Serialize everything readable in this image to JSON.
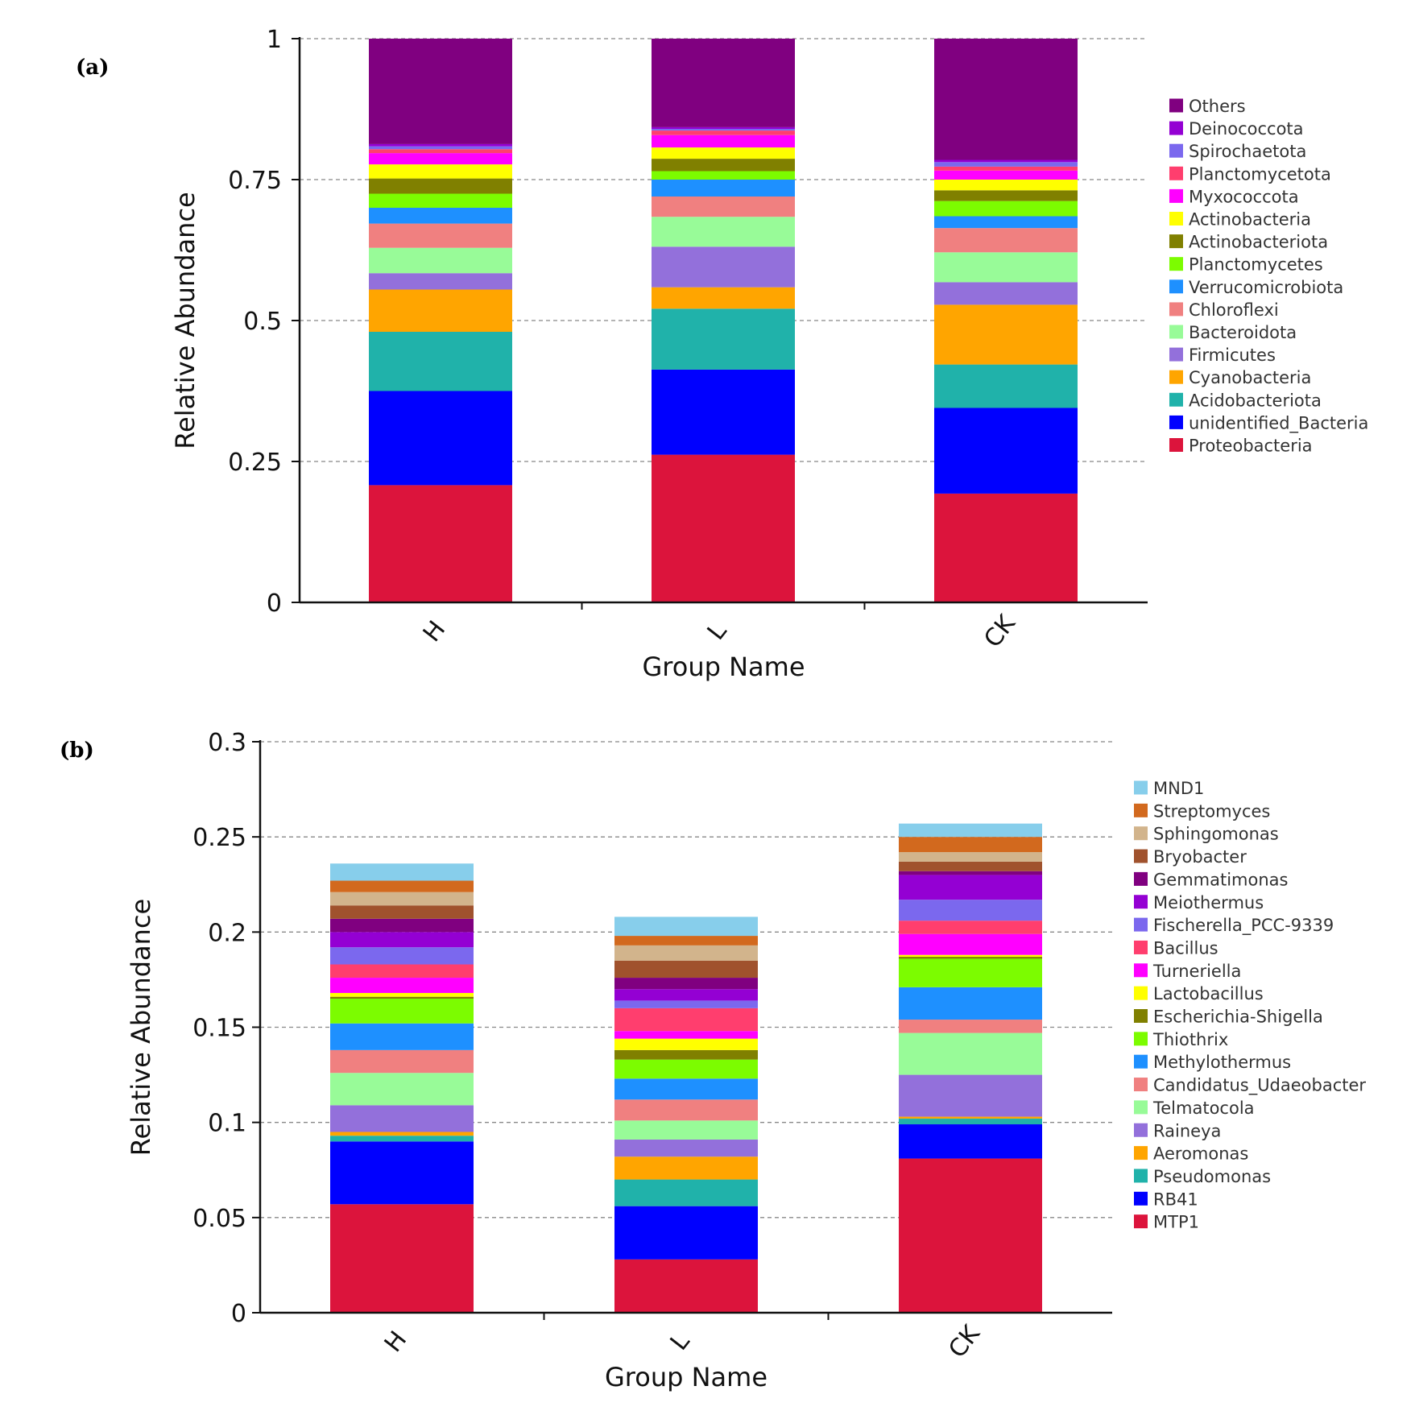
{
  "chart_data": [
    {
      "panel": "(a)",
      "type": "bar",
      "stacked": true,
      "categories": [
        "H",
        "L",
        "CK"
      ],
      "xlabel": "Group Name",
      "ylabel": "Relative Abundance",
      "ylim": [
        0,
        1
      ],
      "yticks": [
        0,
        0.25,
        0.5,
        0.75,
        1
      ],
      "ytick_labels": [
        "0",
        "0.25",
        "0.5",
        "0.75",
        "1"
      ],
      "grid": "dashed horizontal",
      "legend_position": "right",
      "series": [
        {
          "name": "Proteobacteria",
          "color": "#dc143c",
          "values": [
            0.208,
            0.262,
            0.193
          ]
        },
        {
          "name": "unidentified_Bacteria",
          "color": "#0000ff",
          "values": [
            0.167,
            0.151,
            0.152
          ]
        },
        {
          "name": "Acidobacteriota",
          "color": "#20b2aa",
          "values": [
            0.105,
            0.108,
            0.077
          ]
        },
        {
          "name": "Cyanobacteria",
          "color": "#ffa500",
          "values": [
            0.075,
            0.038,
            0.106
          ]
        },
        {
          "name": "Firmicutes",
          "color": "#9370db",
          "values": [
            0.029,
            0.072,
            0.04
          ]
        },
        {
          "name": "Bacteroidota",
          "color": "#98fb98",
          "values": [
            0.045,
            0.053,
            0.053
          ]
        },
        {
          "name": "Chloroflexi",
          "color": "#f08080",
          "values": [
            0.043,
            0.036,
            0.043
          ]
        },
        {
          "name": "Verrucomicrobiota",
          "color": "#1e90ff",
          "values": [
            0.028,
            0.03,
            0.021
          ]
        },
        {
          "name": "Planctomycetes",
          "color": "#7cfc00",
          "values": [
            0.025,
            0.015,
            0.027
          ]
        },
        {
          "name": "Actinobacteriota",
          "color": "#808000",
          "values": [
            0.027,
            0.022,
            0.019
          ]
        },
        {
          "name": "Actinobacteria",
          "color": "#ffff00",
          "values": [
            0.025,
            0.02,
            0.019
          ]
        },
        {
          "name": "Myxococcota",
          "color": "#ff00ff",
          "values": [
            0.02,
            0.022,
            0.016
          ]
        },
        {
          "name": "Planctomycetota",
          "color": "#ff3e6e",
          "values": [
            0.007,
            0.008,
            0.007
          ]
        },
        {
          "name": "Spirochaetota",
          "color": "#7b68ee",
          "values": [
            0.005,
            0.003,
            0.008
          ]
        },
        {
          "name": "Deinococcota",
          "color": "#9400d3",
          "values": [
            0.004,
            0.003,
            0.004
          ]
        },
        {
          "name": "Others",
          "color": "#800080",
          "values": [
            0.187,
            0.157,
            0.215
          ]
        }
      ]
    },
    {
      "panel": "(b)",
      "type": "bar",
      "stacked": true,
      "categories": [
        "H",
        "L",
        "CK"
      ],
      "xlabel": "Group Name",
      "ylabel": "Relative Abundance",
      "ylim": [
        0,
        0.3
      ],
      "yticks": [
        0,
        0.05,
        0.1,
        0.15,
        0.2,
        0.25,
        0.3
      ],
      "ytick_labels": [
        "0",
        "0.05",
        "0.1",
        "0.15",
        "0.2",
        "0.25",
        "0.3"
      ],
      "grid": "dashed horizontal",
      "legend_position": "right",
      "series": [
        {
          "name": "MTP1",
          "color": "#dc143c",
          "values": [
            0.057,
            0.028,
            0.081
          ]
        },
        {
          "name": "RB41",
          "color": "#0000ff",
          "values": [
            0.033,
            0.028,
            0.018
          ]
        },
        {
          "name": "Pseudomonas",
          "color": "#20b2aa",
          "values": [
            0.003,
            0.014,
            0.003
          ]
        },
        {
          "name": "Aeromonas",
          "color": "#ffa500",
          "values": [
            0.002,
            0.012,
            0.001
          ]
        },
        {
          "name": "Raineya",
          "color": "#9370db",
          "values": [
            0.014,
            0.009,
            0.022
          ]
        },
        {
          "name": "Telmatocola",
          "color": "#98fb98",
          "values": [
            0.017,
            0.01,
            0.022
          ]
        },
        {
          "name": "Candidatus_Udaeobacter",
          "color": "#f08080",
          "values": [
            0.012,
            0.011,
            0.007
          ]
        },
        {
          "name": "Methylothermus",
          "color": "#1e90ff",
          "values": [
            0.014,
            0.011,
            0.017
          ]
        },
        {
          "name": "Thiothrix",
          "color": "#7cfc00",
          "values": [
            0.013,
            0.01,
            0.015
          ]
        },
        {
          "name": "Escherichia-Shigella",
          "color": "#808000",
          "values": [
            0.001,
            0.005,
            0.001
          ]
        },
        {
          "name": "Lactobacillus",
          "color": "#ffff00",
          "values": [
            0.002,
            0.006,
            0.001
          ]
        },
        {
          "name": "Turneriella",
          "color": "#ff00ff",
          "values": [
            0.008,
            0.004,
            0.011
          ]
        },
        {
          "name": "Bacillus",
          "color": "#ff3e6e",
          "values": [
            0.007,
            0.012,
            0.007
          ]
        },
        {
          "name": "Fischerella_PCC-9339",
          "color": "#7b68ee",
          "values": [
            0.009,
            0.004,
            0.011
          ]
        },
        {
          "name": "Meiothermus",
          "color": "#9400d3",
          "values": [
            0.008,
            0.006,
            0.013
          ]
        },
        {
          "name": "Gemmatimonas",
          "color": "#800080",
          "values": [
            0.007,
            0.006,
            0.002
          ]
        },
        {
          "name": "Bryobacter",
          "color": "#a0522d",
          "values": [
            0.007,
            0.009,
            0.005
          ]
        },
        {
          "name": "Sphingomonas",
          "color": "#d2b48c",
          "values": [
            0.007,
            0.008,
            0.005
          ]
        },
        {
          "name": "Streptomyces",
          "color": "#d2691e",
          "values": [
            0.006,
            0.005,
            0.008
          ]
        },
        {
          "name": "MND1",
          "color": "#87ceeb",
          "values": [
            0.009,
            0.01,
            0.007
          ]
        }
      ]
    }
  ]
}
